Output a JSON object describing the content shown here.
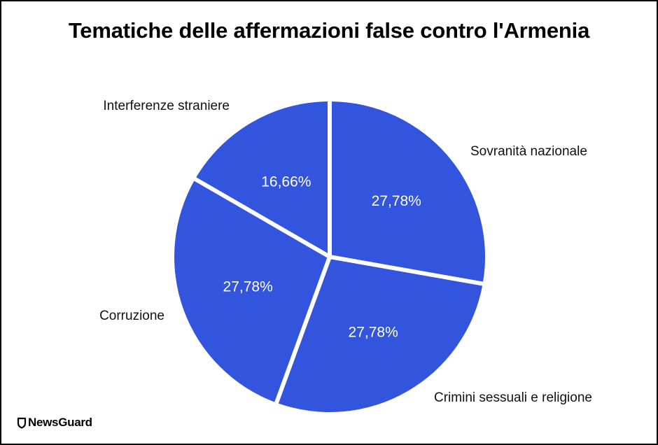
{
  "chart_data": {
    "type": "pie",
    "title": "Tematiche delle affermazioni false contro l'Armenia",
    "categories": [
      "Sovranità nazionale",
      "Crimini sessuali e religione",
      "Corruzione",
      "Interferenze straniere"
    ],
    "values": [
      27.78,
      27.78,
      27.78,
      16.66
    ],
    "value_labels": [
      "27,78%",
      "27,78%",
      "27,78%",
      "16,66%"
    ],
    "colors": [
      "#3355dd",
      "#3355dd",
      "#3355dd",
      "#3355dd"
    ],
    "start_angle_deg": 0,
    "direction": "clockwise",
    "separator_color": "#ffffff"
  },
  "branding": {
    "logo_text": "NewsGuard",
    "logo_icon": "shield-icon"
  }
}
